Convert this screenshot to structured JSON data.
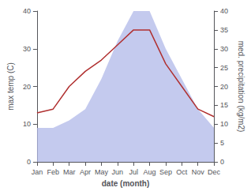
{
  "chart_data": {
    "type": "line",
    "xlabel": "date (month)",
    "ylabel": "max temp (C)",
    "y2label": "med. precipitation (kg/m2)",
    "categories": [
      "Jan",
      "Feb",
      "Mar",
      "Apr",
      "May",
      "Jun",
      "Jul",
      "Aug",
      "Sep",
      "Oct",
      "Nov",
      "Dec"
    ],
    "series": [
      {
        "type": "area",
        "axis": "y2",
        "color": "#b0b8e8",
        "values": [
          9,
          9,
          11,
          14,
          22,
          32,
          40,
          40,
          30,
          22,
          14,
          9
        ]
      },
      {
        "type": "line",
        "color": "#b03030",
        "values": [
          13,
          14,
          20,
          24,
          27,
          31,
          35,
          35,
          26,
          20,
          14,
          12
        ]
      }
    ],
    "ylim": [
      0,
      40
    ],
    "yticks": [
      0,
      10,
      20,
      30,
      40
    ],
    "y2lim": [
      0,
      40
    ],
    "y2ticks": [
      0,
      5,
      10,
      15,
      20,
      25,
      30,
      35,
      40
    ],
    "grid": false
  }
}
